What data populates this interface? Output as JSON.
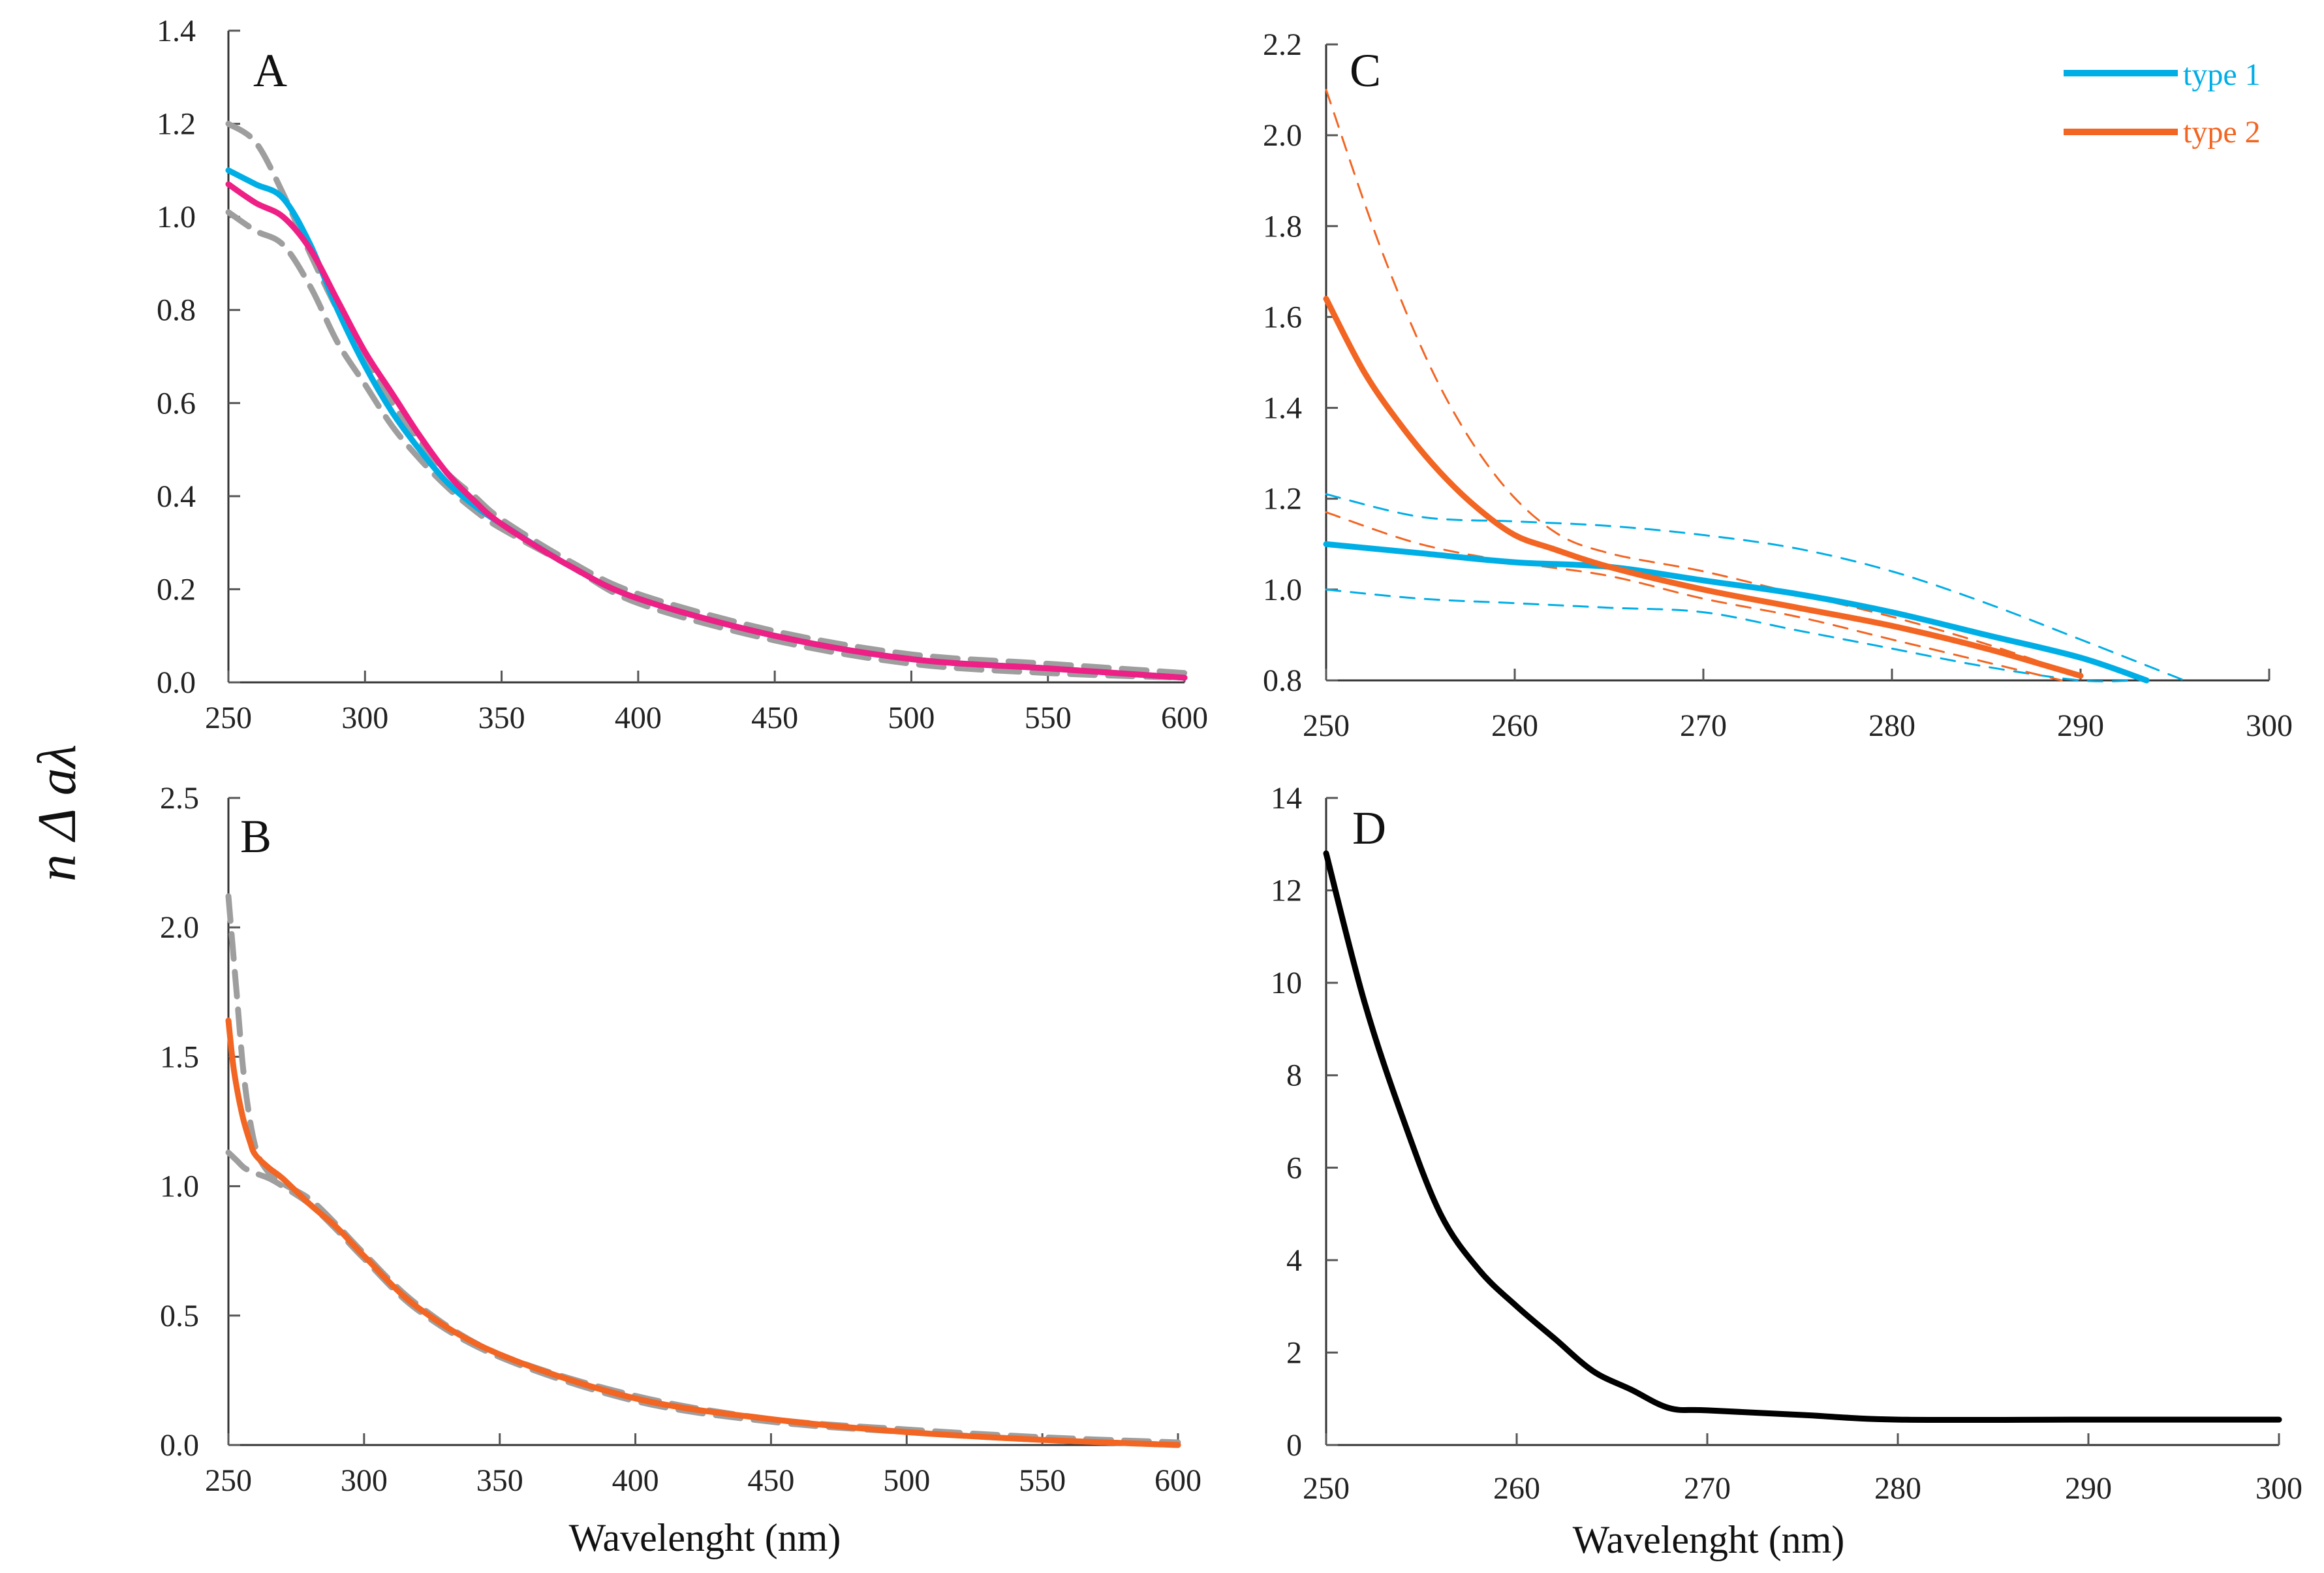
{
  "figure": {
    "y_axis_title": "n Δ aλ",
    "colors": {
      "cyan": "#00aee6",
      "magenta": "#ee1f85",
      "orange": "#f26522",
      "gray": "#9e9e9e",
      "black": "#000000"
    }
  },
  "chart_data": [
    {
      "id": "A",
      "type": "line",
      "panel_label": "A",
      "xlabel": "",
      "ylabel": "",
      "xlim": [
        250,
        600
      ],
      "ylim": [
        0,
        1.4
      ],
      "xticks": [
        250,
        300,
        350,
        400,
        450,
        500,
        550,
        600
      ],
      "yticks": [
        0.0,
        0.2,
        0.4,
        0.6,
        0.8,
        1.0,
        1.2,
        1.4
      ],
      "ytick_labels": [
        "0.0",
        "0.2",
        "0.4",
        "0.6",
        "0.8",
        "1.0",
        "1.2",
        "1.4"
      ],
      "x_tick_labels": [
        "250",
        "300",
        "350",
        "400",
        "450",
        "500",
        "550",
        "600"
      ],
      "series": [
        {
          "name": "upper bound",
          "color": "gray",
          "dashed": true,
          "width": 9,
          "x": [
            250,
            260,
            270,
            280,
            290,
            300,
            310,
            320,
            330,
            340,
            350,
            375,
            400,
            450,
            500,
            550,
            600
          ],
          "y": [
            1.2,
            1.16,
            1.05,
            0.92,
            0.8,
            0.7,
            0.6,
            0.52,
            0.45,
            0.4,
            0.35,
            0.26,
            0.19,
            0.11,
            0.06,
            0.04,
            0.02
          ]
        },
        {
          "name": "lower bound",
          "color": "gray",
          "dashed": true,
          "width": 9,
          "x": [
            250,
            260,
            270,
            280,
            290,
            300,
            310,
            320,
            330,
            340,
            350,
            375,
            400,
            450,
            500,
            550,
            600
          ],
          "y": [
            1.01,
            0.97,
            0.94,
            0.85,
            0.73,
            0.64,
            0.55,
            0.48,
            0.42,
            0.37,
            0.33,
            0.25,
            0.17,
            0.09,
            0.04,
            0.02,
            0.01
          ]
        },
        {
          "name": "cyan",
          "color": "cyan",
          "dashed": false,
          "width": 9,
          "x": [
            250,
            260,
            270,
            280,
            290,
            300,
            310,
            320,
            330,
            340,
            350,
            375,
            400,
            450,
            500,
            550,
            600
          ],
          "y": [
            1.1,
            1.07,
            1.04,
            0.94,
            0.8,
            0.68,
            0.58,
            0.5,
            0.43,
            0.38,
            0.34,
            0.25,
            0.18,
            0.1,
            0.05,
            0.03,
            0.01
          ]
        },
        {
          "name": "magenta",
          "color": "magenta",
          "dashed": false,
          "width": 9,
          "x": [
            250,
            260,
            270,
            280,
            290,
            300,
            310,
            320,
            330,
            340,
            350,
            375,
            400,
            450,
            500,
            550,
            600
          ],
          "y": [
            1.07,
            1.03,
            1.0,
            0.93,
            0.82,
            0.71,
            0.62,
            0.53,
            0.45,
            0.39,
            0.34,
            0.25,
            0.18,
            0.1,
            0.05,
            0.03,
            0.01
          ]
        }
      ]
    },
    {
      "id": "B",
      "type": "line",
      "panel_label": "B",
      "xlabel": "Wavelenght (nm)",
      "ylabel": "",
      "xlim": [
        250,
        600
      ],
      "ylim": [
        0,
        2.5
      ],
      "xticks": [
        250,
        300,
        350,
        400,
        450,
        500,
        550,
        600
      ],
      "yticks": [
        0.0,
        0.5,
        1.0,
        1.5,
        2.0,
        2.5
      ],
      "ytick_labels": [
        "0.0",
        "0.5",
        "1.0",
        "1.5",
        "2.0",
        "2.5"
      ],
      "x_tick_labels": [
        "250",
        "300",
        "350",
        "400",
        "450",
        "500",
        "550",
        "600"
      ],
      "series": [
        {
          "name": "upper bound",
          "color": "gray",
          "dashed": true,
          "width": 9,
          "x": [
            250,
            253,
            256,
            260,
            265,
            270,
            280,
            290,
            300,
            320,
            350,
            400,
            450,
            500,
            550,
            600
          ],
          "y": [
            2.12,
            1.75,
            1.4,
            1.15,
            1.05,
            1.01,
            0.95,
            0.85,
            0.74,
            0.54,
            0.35,
            0.19,
            0.1,
            0.06,
            0.03,
            0.01
          ]
        },
        {
          "name": "lower bound",
          "color": "gray",
          "dashed": true,
          "width": 9,
          "x": [
            250,
            253,
            256,
            260,
            265,
            270,
            280,
            290,
            300,
            320,
            350,
            400,
            450,
            500,
            550,
            600
          ],
          "y": [
            1.13,
            1.1,
            1.07,
            1.05,
            1.03,
            1.0,
            0.93,
            0.83,
            0.72,
            0.52,
            0.34,
            0.17,
            0.09,
            0.05,
            0.02,
            0.0
          ]
        },
        {
          "name": "orange",
          "color": "orange",
          "dashed": false,
          "width": 9,
          "x": [
            250,
            252,
            255,
            258,
            260,
            265,
            270,
            280,
            290,
            300,
            320,
            350,
            400,
            450,
            500,
            550,
            600
          ],
          "y": [
            1.64,
            1.45,
            1.28,
            1.17,
            1.12,
            1.07,
            1.03,
            0.93,
            0.84,
            0.73,
            0.53,
            0.35,
            0.18,
            0.1,
            0.05,
            0.02,
            0.0
          ]
        }
      ]
    },
    {
      "id": "C",
      "type": "line",
      "panel_label": "C",
      "xlabel": "",
      "ylabel": "",
      "xlim": [
        250,
        300
      ],
      "ylim": [
        0.8,
        2.2
      ],
      "xticks": [
        250,
        260,
        270,
        280,
        290,
        300
      ],
      "yticks": [
        0.8,
        1.0,
        1.2,
        1.4,
        1.6,
        1.8,
        2.0,
        2.2
      ],
      "ytick_labels": [
        "0.8",
        "1.0",
        "1.2",
        "1.4",
        "1.6",
        "1.8",
        "2.0",
        "2.2"
      ],
      "x_tick_labels": [
        "250",
        "260",
        "270",
        "280",
        "290",
        "300"
      ],
      "legend": [
        {
          "label": "type 1",
          "color": "cyan"
        },
        {
          "label": "type 2",
          "color": "orange"
        }
      ],
      "series": [
        {
          "name": "type 1 upper",
          "color": "cyan",
          "dashed": true,
          "width": 3,
          "x": [
            250,
            255,
            260,
            265,
            270,
            275,
            280,
            285,
            290,
            295.5
          ],
          "y": [
            1.21,
            1.16,
            1.15,
            1.14,
            1.12,
            1.09,
            1.04,
            0.97,
            0.89,
            0.8
          ]
        },
        {
          "name": "type 1 lower",
          "color": "cyan",
          "dashed": true,
          "width": 3,
          "x": [
            250,
            255,
            260,
            265,
            270,
            275,
            280,
            285,
            290,
            293
          ],
          "y": [
            1.0,
            0.98,
            0.97,
            0.96,
            0.95,
            0.91,
            0.87,
            0.83,
            0.8,
            0.8
          ]
        },
        {
          "name": "type 2 upper",
          "color": "orange",
          "dashed": true,
          "width": 3,
          "x": [
            250,
            253,
            256,
            259,
            262,
            265,
            270,
            275,
            280,
            285,
            290
          ],
          "y": [
            2.1,
            1.74,
            1.45,
            1.25,
            1.13,
            1.08,
            1.04,
            0.99,
            0.94,
            0.88,
            0.81
          ]
        },
        {
          "name": "type 2 lower",
          "color": "orange",
          "dashed": true,
          "width": 3,
          "x": [
            250,
            255,
            260,
            265,
            270,
            275,
            280,
            285,
            289
          ],
          "y": [
            1.17,
            1.1,
            1.06,
            1.03,
            0.98,
            0.94,
            0.89,
            0.84,
            0.8
          ]
        },
        {
          "name": "type 1",
          "color": "cyan",
          "dashed": false,
          "width": 9,
          "x": [
            250,
            255,
            260,
            265,
            270,
            275,
            280,
            285,
            290,
            293.5
          ],
          "y": [
            1.1,
            1.08,
            1.06,
            1.05,
            1.02,
            0.99,
            0.95,
            0.9,
            0.85,
            0.8
          ]
        },
        {
          "name": "type 2",
          "color": "orange",
          "dashed": false,
          "width": 9,
          "x": [
            250,
            252,
            254,
            256,
            258,
            260,
            262,
            265,
            270,
            275,
            280,
            285,
            290
          ],
          "y": [
            1.64,
            1.48,
            1.36,
            1.26,
            1.18,
            1.12,
            1.09,
            1.05,
            1.0,
            0.96,
            0.92,
            0.87,
            0.81
          ]
        }
      ]
    },
    {
      "id": "D",
      "type": "line",
      "panel_label": "D",
      "xlabel": "Wavelenght (nm)",
      "ylabel": "",
      "xlim": [
        250,
        300
      ],
      "ylim": [
        0,
        14
      ],
      "xticks": [
        250,
        260,
        270,
        280,
        290,
        300
      ],
      "yticks": [
        0,
        2,
        4,
        6,
        8,
        10,
        12,
        14
      ],
      "ytick_labels": [
        "0",
        "2",
        "4",
        "6",
        "8",
        "10",
        "12",
        "14"
      ],
      "x_tick_labels": [
        "250",
        "260",
        "270",
        "280",
        "290",
        "300"
      ],
      "series": [
        {
          "name": "ratio",
          "color": "black",
          "dashed": false,
          "width": 9,
          "x": [
            250,
            252,
            254,
            256,
            258,
            260,
            262,
            264,
            266,
            268,
            270,
            275,
            280,
            290,
            300
          ],
          "y": [
            12.8,
            9.6,
            7.1,
            5.0,
            3.8,
            3.0,
            2.3,
            1.6,
            1.2,
            0.8,
            0.75,
            0.65,
            0.55,
            0.55,
            0.55
          ]
        }
      ]
    }
  ]
}
